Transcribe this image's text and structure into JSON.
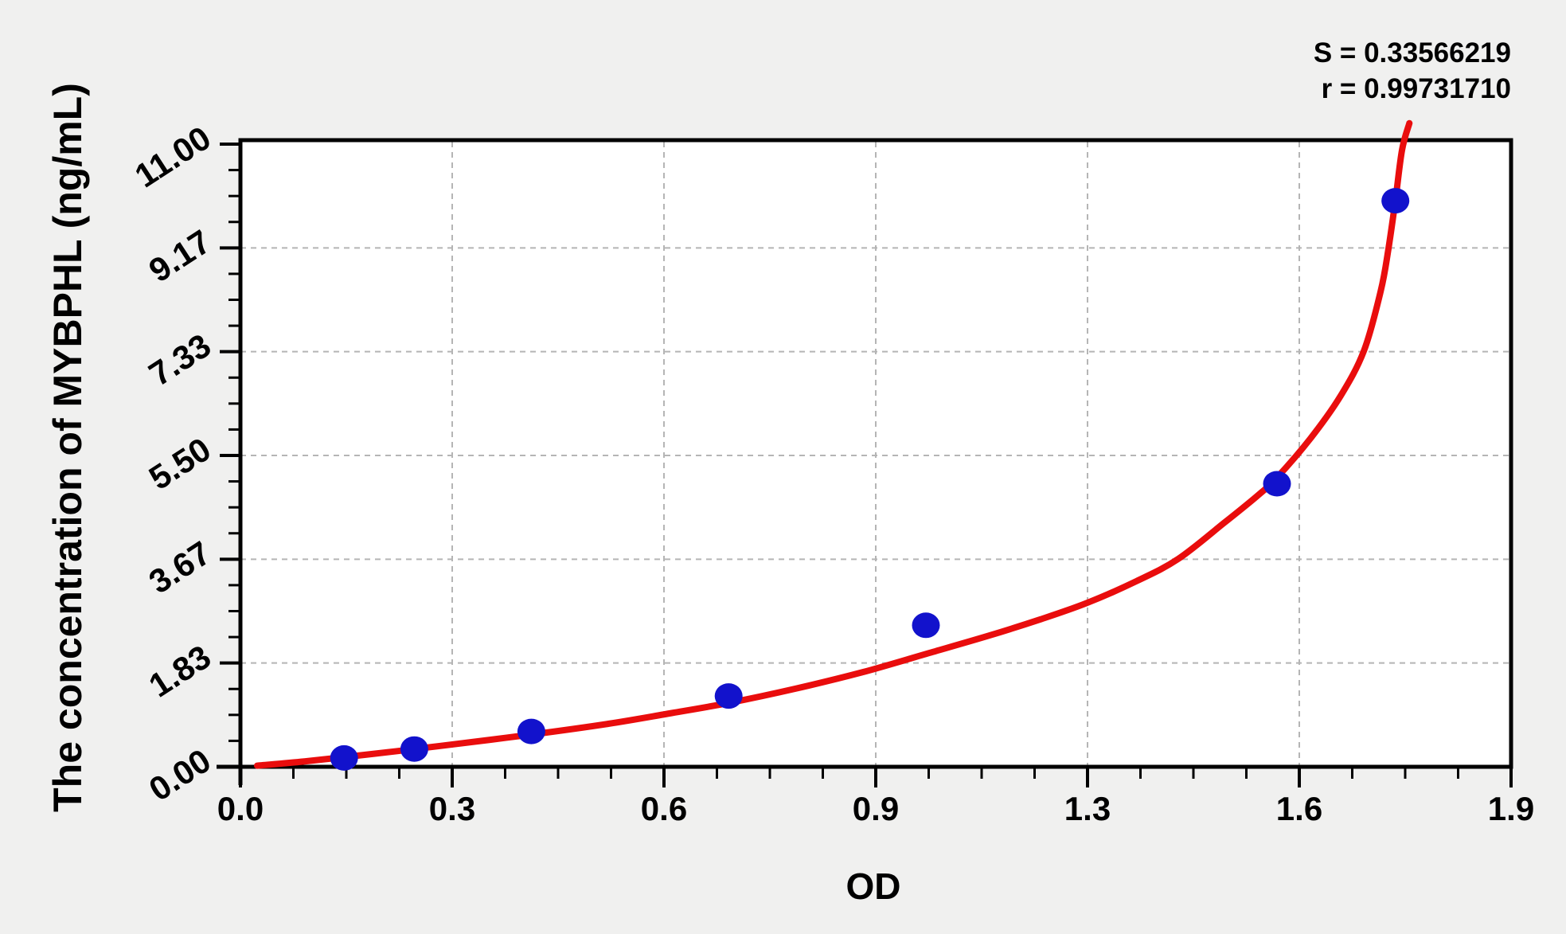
{
  "page": {
    "background": "#f0f0ef"
  },
  "stats": {
    "s_line": "S = 0.33566219",
    "r_line": "r = 0.99731710"
  },
  "axes": {
    "x": {
      "title": "OD",
      "min": 0,
      "max": 1.9,
      "tick_labels": [
        "0.0",
        "0.3",
        "0.6",
        "0.9",
        "1.3",
        "1.6",
        "1.9"
      ],
      "minor_divisions": 4
    },
    "y": {
      "title": "The concentration of MYBPHL (ng/mL)",
      "min": 0,
      "max": 11,
      "tick_labels": [
        "0.00",
        "1.83",
        "3.67",
        "5.50",
        "7.33",
        "9.17",
        "11.00"
      ],
      "minor_divisions": 4
    }
  },
  "chart_data": {
    "type": "scatter",
    "title": "",
    "xlabel": "OD",
    "ylabel": "The concentration of MYBPHL (ng/mL)",
    "xlim": [
      0,
      1.9
    ],
    "ylim": [
      0,
      11
    ],
    "grid": "dashed-major",
    "legend": "none",
    "annotations": {
      "S": "0.33566219",
      "r": "0.99731710"
    },
    "series": [
      {
        "name": "standard-points",
        "type": "scatter",
        "color": "#1212cc",
        "points_od_conc": [
          [
            0.155,
            0.156
          ],
          [
            0.26,
            0.313
          ],
          [
            0.435,
            0.625
          ],
          [
            0.73,
            1.25
          ],
          [
            1.025,
            2.5
          ],
          [
            1.55,
            5.0
          ],
          [
            1.727,
            10.0
          ]
        ]
      },
      {
        "name": "fitted-curve",
        "type": "line",
        "color": "#e90d0d",
        "points_od_conc": [
          [
            0.025,
            0.02
          ],
          [
            0.1,
            0.1
          ],
          [
            0.2,
            0.23
          ],
          [
            0.3,
            0.37
          ],
          [
            0.435,
            0.57
          ],
          [
            0.55,
            0.76
          ],
          [
            0.645,
            0.95
          ],
          [
            0.731,
            1.13
          ],
          [
            0.83,
            1.38
          ],
          [
            0.93,
            1.67
          ],
          [
            1.027,
            2.0
          ],
          [
            1.12,
            2.32
          ],
          [
            1.195,
            2.6
          ],
          [
            1.267,
            2.9
          ],
          [
            1.34,
            3.28
          ],
          [
            1.402,
            3.67
          ],
          [
            1.47,
            4.3
          ],
          [
            1.52,
            4.78
          ],
          [
            1.55,
            5.11
          ],
          [
            1.6,
            5.8
          ],
          [
            1.645,
            6.55
          ],
          [
            1.68,
            7.35
          ],
          [
            1.705,
            8.4
          ],
          [
            1.716,
            9.1
          ],
          [
            1.727,
            10.0
          ],
          [
            1.737,
            10.9
          ],
          [
            1.748,
            11.37
          ]
        ]
      }
    ]
  },
  "colors": {
    "curve": "#e90d0d",
    "points": "#1212cc",
    "grid": "#b5b5b5",
    "axis": "#000000",
    "plot_background": "#ffffff",
    "page_background": "#f0f0ef",
    "text": "#000000"
  }
}
